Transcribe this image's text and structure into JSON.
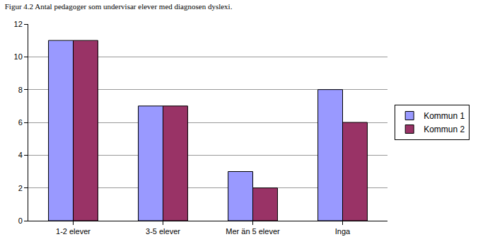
{
  "chart_data": {
    "type": "bar",
    "title": "Figur 4.2 Antal pedagoger som undervisar elever med diagnosen dyslexi.",
    "categories": [
      "1-2 elever",
      "3-5 elever",
      "Mer än 5 elever",
      "Inga"
    ],
    "series": [
      {
        "name": "Kommun 1",
        "color": "#9999ff",
        "values": [
          11,
          7,
          3,
          8
        ]
      },
      {
        "name": "Kommun 2",
        "color": "#993366",
        "values": [
          11,
          7,
          2,
          6
        ]
      }
    ],
    "ylim": [
      0,
      12
    ],
    "yticks": [
      0,
      2,
      4,
      6,
      8,
      10,
      12
    ],
    "grid": true,
    "legend": "right"
  }
}
